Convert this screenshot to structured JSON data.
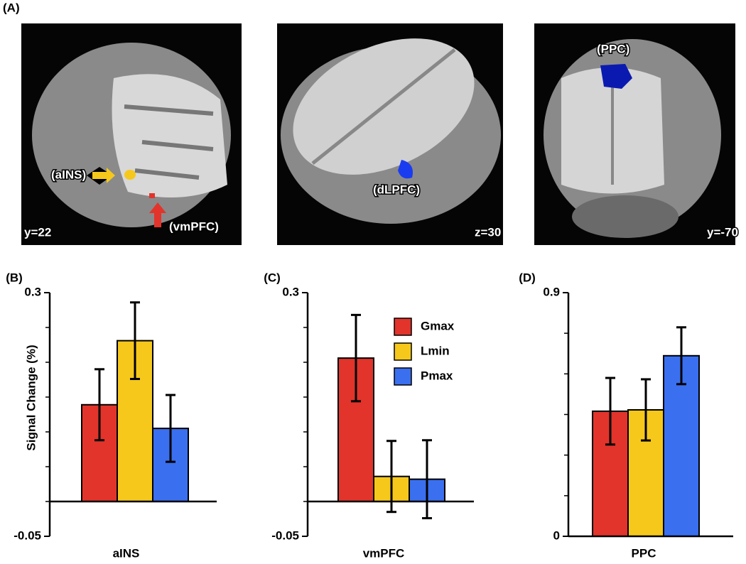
{
  "panel_a": {
    "label": "(A)",
    "images": [
      {
        "slice": "y=22",
        "regions": [
          "(aINS)",
          "(vmPFC)"
        ]
      },
      {
        "slice": "z=30",
        "regions": [
          "(dLPFC)"
        ]
      },
      {
        "slice": "y=-70",
        "regions": [
          "(PPC)"
        ]
      }
    ]
  },
  "chart_data": [
    {
      "type": "bar",
      "panel_label": "(B)",
      "ylabel": "Signal Change (%)",
      "xlabel": "aINS",
      "ylim": [
        -0.05,
        0.3
      ],
      "yticks": [
        -0.05,
        0.3
      ],
      "minor_yticks": [
        0,
        0.05,
        0.1,
        0.15,
        0.2,
        0.25
      ],
      "series": [
        {
          "name": "Gmax",
          "color": "#e2342b",
          "values": [
            0.139
          ],
          "errors": [
            0.051
          ]
        },
        {
          "name": "Lmin",
          "color": "#f6c81b",
          "values": [
            0.231
          ],
          "errors": [
            0.055
          ]
        },
        {
          "name": "Pmax",
          "color": "#3a6ff0",
          "values": [
            0.105
          ],
          "errors": [
            0.048
          ]
        }
      ]
    },
    {
      "type": "bar",
      "panel_label": "(C)",
      "xlabel": "vmPFC",
      "legend": "upper right",
      "ylim": [
        -0.05,
        0.3
      ],
      "yticks": [
        -0.05,
        0.3
      ],
      "minor_yticks": [
        0,
        0.05,
        0.1,
        0.15,
        0.2,
        0.25
      ],
      "series": [
        {
          "name": "Gmax",
          "color": "#e2342b",
          "values": [
            0.206
          ],
          "errors": [
            0.062
          ]
        },
        {
          "name": "Lmin",
          "color": "#f6c81b",
          "values": [
            0.036
          ],
          "errors": [
            0.051
          ]
        },
        {
          "name": "Pmax",
          "color": "#3a6ff0",
          "values": [
            0.032
          ],
          "errors": [
            0.056
          ]
        }
      ]
    },
    {
      "type": "bar",
      "panel_label": "(D)",
      "xlabel": "PPC",
      "ylim": [
        0,
        0.9
      ],
      "yticks": [
        0,
        0.9
      ],
      "minor_yticks": [
        0.15,
        0.3,
        0.45,
        0.6,
        0.75
      ],
      "series": [
        {
          "name": "Gmax",
          "color": "#e2342b",
          "values": [
            0.462
          ],
          "errors": [
            0.123
          ]
        },
        {
          "name": "Lmin",
          "color": "#f6c81b",
          "values": [
            0.467
          ],
          "errors": [
            0.113
          ]
        },
        {
          "name": "Pmax",
          "color": "#3a6ff0",
          "values": [
            0.667
          ],
          "errors": [
            0.105
          ]
        }
      ]
    }
  ]
}
